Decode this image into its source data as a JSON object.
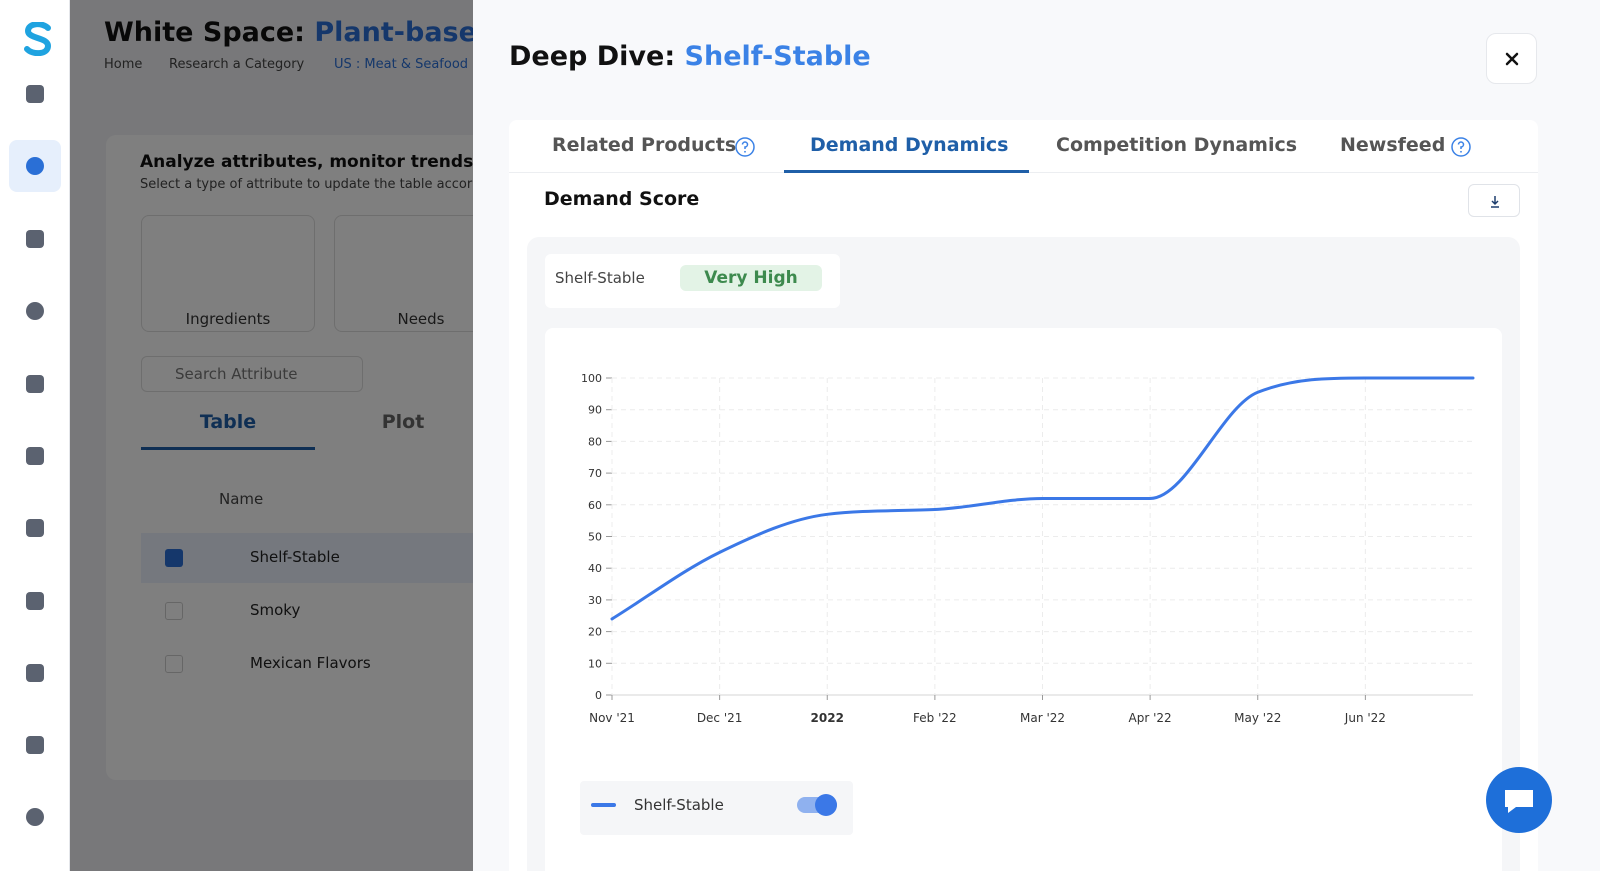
{
  "background_page": {
    "title": "White Space:",
    "title_highlight": "Plant-based M",
    "breadcrumbs": [
      "Home",
      "Research a Category",
      "US : Meat & Seafood :"
    ],
    "heading": "Analyze attributes, monitor trends, an",
    "subheading": "Select a type of attribute to update the table accor",
    "attribute_types": [
      "Ingredients",
      "Needs"
    ],
    "search_placeholder": "Search Attribute",
    "view_tabs": [
      "Table",
      "Plot"
    ],
    "table": {
      "column": "Name",
      "rows": [
        "Shelf-Stable",
        "Smoky",
        "Mexican Flavors"
      ]
    }
  },
  "drawer": {
    "title": "Deep Dive:",
    "title_highlight": "Shelf-Stable",
    "tabs": [
      "Related Products",
      "Demand Dynamics",
      "Competition Dynamics",
      "Newsfeed"
    ],
    "active_tab_index": 1,
    "section_title": "Demand Score",
    "score_label": "Shelf-Stable",
    "score_value": "Very High"
  },
  "chart_data": {
    "type": "line",
    "categories": [
      "Nov '21",
      "Dec '21",
      "2022",
      "Feb '22",
      "Mar '22",
      "Apr '22",
      "May '22",
      "Jun '22",
      null
    ],
    "series": [
      {
        "name": "Shelf-Stable",
        "color": "#3b78e7",
        "values": [
          24,
          45,
          57,
          58.5,
          62,
          62,
          95.5,
          100,
          100
        ]
      }
    ],
    "ylim": [
      0,
      100
    ],
    "yticks": [
      0,
      10,
      20,
      30,
      40,
      50,
      60,
      70,
      80,
      90,
      100
    ],
    "grid": true
  }
}
